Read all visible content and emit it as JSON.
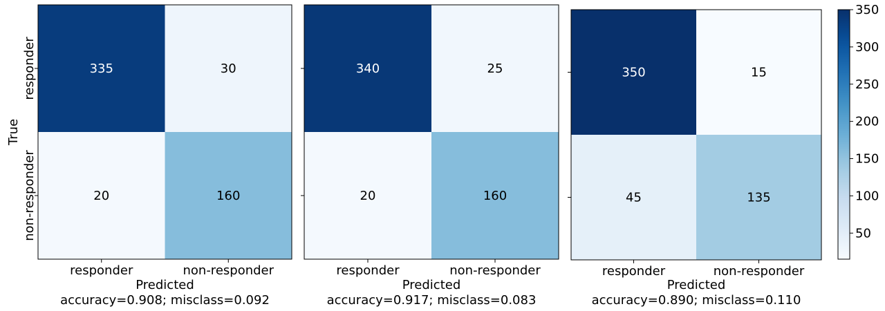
{
  "chart_data": [
    {
      "type": "heatmap",
      "row_labels": [
        "responder",
        "non-responder"
      ],
      "col_labels": [
        "responder",
        "non-responder"
      ],
      "ylabel": "True",
      "xlabel": "Predicted",
      "subtitle": "accuracy=0.908; misclass=0.092",
      "matrix": [
        [
          335,
          30
        ],
        [
          20,
          160
        ]
      ]
    },
    {
      "type": "heatmap",
      "row_labels": [
        "responder",
        "non-responder"
      ],
      "col_labels": [
        "responder",
        "non-responder"
      ],
      "ylabel": "",
      "xlabel": "Predicted",
      "subtitle": "accuracy=0.917; misclass=0.083",
      "matrix": [
        [
          340,
          25
        ],
        [
          20,
          160
        ]
      ]
    },
    {
      "type": "heatmap",
      "row_labels": [
        "responder",
        "non-responder"
      ],
      "col_labels": [
        "responder",
        "non-responder"
      ],
      "ylabel": "",
      "xlabel": "Predicted",
      "subtitle": "accuracy=0.890; misclass=0.110",
      "matrix": [
        [
          350,
          15
        ],
        [
          45,
          135
        ]
      ]
    }
  ],
  "colorbar": {
    "colormap": "Blues",
    "vmin": 15,
    "vmax": 350,
    "ticks": [
      50,
      100,
      150,
      200,
      250,
      300,
      350
    ]
  }
}
